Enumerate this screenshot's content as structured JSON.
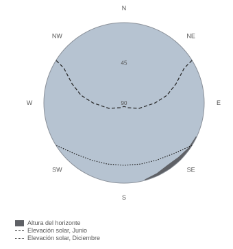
{
  "chart_data": {
    "type": "polar",
    "directions": [
      {
        "key": "N",
        "label": "N",
        "azimuth": 0
      },
      {
        "key": "NE",
        "label": "NE",
        "azimuth": 45
      },
      {
        "key": "E",
        "label": "E",
        "azimuth": 90
      },
      {
        "key": "SE",
        "label": "SE",
        "azimuth": 135
      },
      {
        "key": "S",
        "label": "S",
        "azimuth": 180
      },
      {
        "key": "SW",
        "label": "SW",
        "azimuth": 225
      },
      {
        "key": "W",
        "label": "W",
        "azimuth": 270
      },
      {
        "key": "NW",
        "label": "NW",
        "azimuth": 315
      }
    ],
    "elevation_ticks": [
      {
        "label": "45",
        "elevation": 45
      },
      {
        "label": "90",
        "elevation": 90
      }
    ],
    "horizon": {
      "name": "Altura del horizonte",
      "color": "#5f6166",
      "points": [
        [
          115,
          1
        ],
        [
          125,
          2
        ],
        [
          135,
          4
        ],
        [
          145,
          5
        ],
        [
          155,
          3
        ],
        [
          165,
          1
        ]
      ]
    },
    "series": [
      {
        "name": "Elevación solar, Junio",
        "style": "dashed",
        "color": "#222222",
        "points": [
          [
            58,
            0
          ],
          [
            60,
            12
          ],
          [
            70,
            28
          ],
          [
            80,
            41
          ],
          [
            90,
            55
          ],
          [
            110,
            72
          ],
          [
            140,
            83
          ],
          [
            180,
            86
          ],
          [
            220,
            83
          ],
          [
            250,
            72
          ],
          [
            270,
            55
          ],
          [
            280,
            41
          ],
          [
            290,
            28
          ],
          [
            300,
            12
          ],
          [
            302,
            0
          ]
        ]
      },
      {
        "name": "Elevación solar, Diciembre",
        "style": "dotted",
        "color": "#222222",
        "points": [
          [
            122,
            0
          ],
          [
            125,
            3
          ],
          [
            135,
            10
          ],
          [
            150,
            16
          ],
          [
            165,
            19
          ],
          [
            180,
            20
          ],
          [
            195,
            19
          ],
          [
            210,
            16
          ],
          [
            225,
            10
          ],
          [
            235,
            3
          ],
          [
            238,
            0
          ]
        ]
      }
    ],
    "colors": {
      "sky": "#b6c3d1",
      "rim": "#8a9099"
    },
    "legend_position": "bottom-left"
  }
}
